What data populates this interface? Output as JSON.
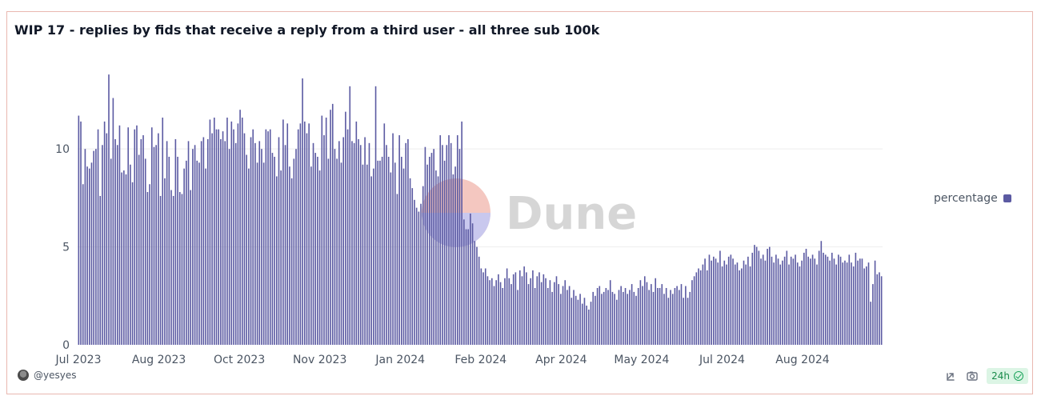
{
  "page": {
    "title": "WIP 17 - replies by fids that receive a reply from a third user - all three sub 100k",
    "author": "@yesyes",
    "watermark": "Dune",
    "refresh_badge": "24h",
    "icons": {
      "author_avatar": "user-avatar-icon",
      "share": "share-icon",
      "screenshot": "camera-icon",
      "refresh_status": "check-circle-icon"
    },
    "colors": {
      "bar": "#5b5aa2",
      "grid": "#eeeeee",
      "watermark_text": "#d6d6d6",
      "watermark_red": "#f4c7c0",
      "watermark_blue": "#c9c8ee"
    }
  },
  "chart_data": {
    "type": "bar",
    "title": "WIP 17 - replies by fids that receive a reply from a third user - all three sub 100k",
    "x_tick_labels": [
      "Jul 2023",
      "Aug 2023",
      "Oct 2023",
      "Nov 2023",
      "Jan 2024",
      "Feb 2024",
      "Apr 2024",
      "May 2024",
      "Jul 2024",
      "Aug 2024"
    ],
    "y_ticks": [
      0,
      5,
      10
    ],
    "ylim": [
      0,
      14.5
    ],
    "grid": true,
    "legend": {
      "position": "right",
      "label": "percentage"
    },
    "series": [
      {
        "name": "percentage",
        "color": "#5b5aa2",
        "values": [
          11.7,
          11.4,
          8.2,
          10.0,
          9.1,
          9.0,
          9.3,
          9.9,
          10.0,
          11.0,
          7.6,
          10.2,
          11.4,
          10.8,
          13.8,
          9.5,
          12.6,
          10.5,
          10.2,
          11.2,
          8.8,
          8.9,
          8.7,
          11.1,
          9.2,
          8.3,
          11.0,
          11.2,
          9.7,
          10.5,
          10.7,
          9.5,
          7.8,
          8.2,
          11.1,
          10.1,
          10.2,
          10.8,
          7.6,
          11.6,
          8.5,
          10.4,
          9.6,
          7.9,
          7.6,
          10.5,
          9.6,
          7.8,
          7.7,
          9.0,
          9.4,
          10.4,
          7.9,
          10.0,
          10.2,
          9.4,
          9.3,
          10.4,
          10.6,
          9.0,
          10.5,
          11.5,
          10.8,
          11.6,
          11.0,
          11.0,
          10.5,
          10.9,
          10.4,
          11.6,
          10.0,
          11.4,
          11.0,
          10.3,
          11.3,
          12.0,
          11.6,
          10.8,
          9.7,
          9.0,
          10.6,
          11.0,
          10.3,
          9.3,
          10.4,
          10.0,
          9.3,
          11.0,
          10.9,
          11.0,
          9.8,
          9.6,
          8.6,
          10.6,
          8.9,
          11.5,
          10.2,
          11.3,
          9.1,
          8.5,
          9.5,
          10.0,
          11.0,
          11.3,
          13.6,
          11.4,
          10.8,
          11.3,
          9.1,
          10.3,
          9.8,
          9.6,
          8.9,
          11.7,
          10.7,
          11.6,
          9.5,
          12.0,
          12.3,
          10.0,
          9.5,
          10.4,
          9.3,
          10.6,
          11.9,
          11.0,
          13.2,
          10.4,
          10.3,
          11.4,
          10.5,
          10.2,
          9.2,
          10.6,
          9.2,
          10.3,
          8.6,
          9.0,
          13.2,
          9.4,
          9.4,
          9.6,
          11.3,
          10.2,
          9.6,
          8.8,
          10.8,
          9.3,
          7.7,
          10.7,
          9.6,
          9.0,
          10.3,
          10.5,
          8.5,
          8.0,
          7.4,
          7.0,
          6.8,
          7.2,
          8.1,
          10.1,
          9.2,
          9.6,
          9.8,
          10.0,
          8.9,
          8.6,
          10.7,
          10.2,
          9.4,
          10.2,
          10.7,
          10.3,
          8.7,
          9.1,
          10.7,
          10.0,
          11.4,
          6.4,
          5.9,
          5.9,
          6.7,
          6.2,
          5.3,
          5.0,
          4.5,
          3.9,
          3.7,
          3.9,
          3.5,
          3.3,
          3.4,
          3.0,
          3.3,
          3.6,
          3.2,
          2.9,
          3.4,
          3.9,
          3.4,
          3.1,
          3.6,
          3.7,
          2.8,
          3.8,
          3.5,
          4.0,
          3.7,
          3.1,
          3.4,
          3.8,
          2.9,
          3.5,
          3.7,
          3.2,
          3.6,
          3.4,
          2.9,
          3.3,
          2.7,
          3.2,
          3.5,
          3.1,
          2.6,
          3.0,
          3.3,
          2.8,
          3.0,
          2.4,
          2.8,
          2.5,
          2.3,
          2.6,
          2.1,
          2.4,
          2.0,
          1.8,
          2.2,
          2.7,
          2.5,
          2.9,
          3.0,
          2.6,
          2.7,
          2.9,
          2.8,
          3.3,
          2.7,
          2.6,
          2.3,
          2.8,
          3.0,
          2.7,
          2.9,
          2.6,
          2.8,
          3.1,
          2.7,
          2.5,
          2.9,
          3.3,
          3.0,
          3.5,
          3.2,
          2.8,
          3.1,
          2.7,
          3.4,
          2.9,
          2.9,
          3.1,
          2.6,
          2.9,
          2.4,
          2.8,
          2.6,
          2.9,
          3.0,
          2.8,
          3.1,
          2.4,
          3.0,
          2.4,
          2.7,
          3.3,
          3.5,
          3.7,
          3.9,
          3.8,
          4.1,
          4.4,
          3.8,
          4.6,
          4.3,
          4.5,
          4.4,
          4.2,
          4.8,
          4.0,
          4.3,
          4.1,
          4.5,
          4.6,
          4.4,
          4.1,
          4.2,
          3.8,
          3.9,
          4.3,
          4.1,
          4.5,
          4.0,
          4.7,
          5.1,
          5.0,
          4.8,
          4.4,
          4.6,
          4.3,
          4.9,
          5.0,
          4.5,
          4.2,
          4.6,
          4.4,
          4.1,
          4.3,
          4.5,
          4.8,
          4.1,
          4.5,
          4.4,
          4.6,
          4.2,
          4.0,
          4.3,
          4.7,
          4.9,
          4.5,
          4.4,
          4.6,
          4.4,
          4.1,
          4.8,
          5.3,
          4.7,
          4.6,
          4.5,
          4.3,
          4.7,
          4.4,
          4.1,
          4.6,
          4.5,
          4.2,
          4.3,
          4.2,
          4.6,
          4.2,
          4.0,
          4.7,
          4.3,
          4.4,
          4.4,
          3.9,
          4.0,
          4.2,
          2.2,
          3.1,
          4.3,
          3.6,
          3.7,
          3.5
        ]
      }
    ]
  }
}
